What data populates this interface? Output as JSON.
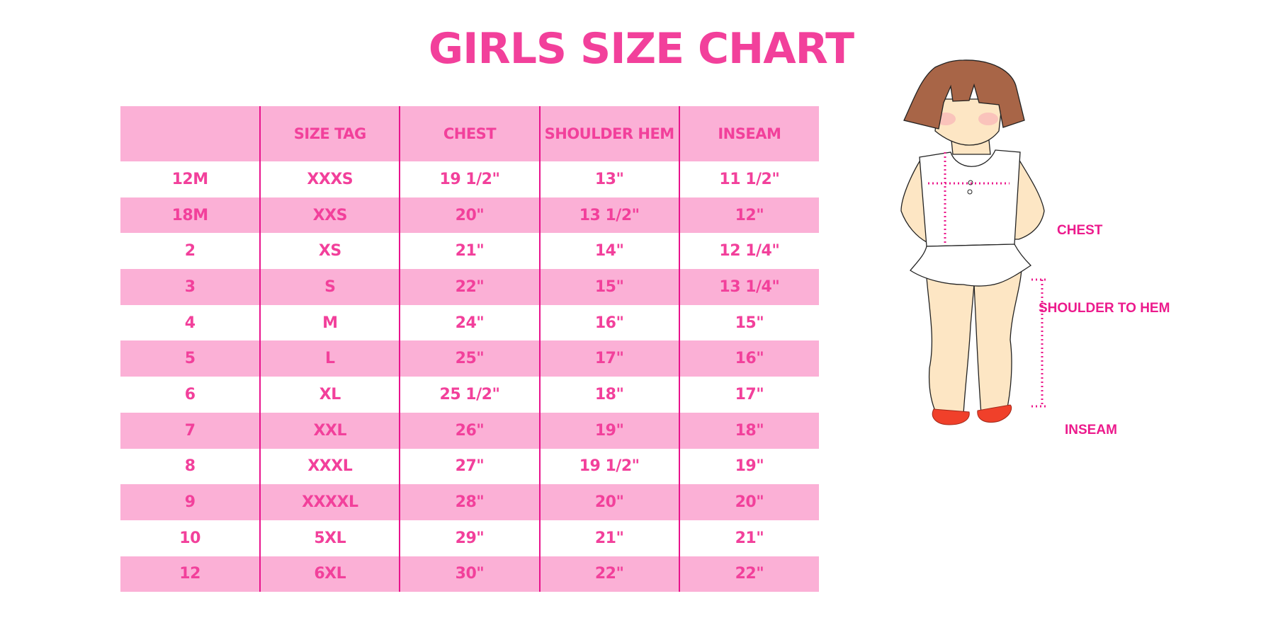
{
  "title": "GIRLS SIZE CHART",
  "colors": {
    "accent": "#f2409b",
    "row_pink": "#fbb0d6",
    "divider": "#e8138c",
    "hair": "#a86547",
    "skin": "#fde6c4",
    "shoes": "#f0402a"
  },
  "table": {
    "headers": [
      "",
      "SIZE TAG",
      "CHEST",
      "SHOULDER HEM",
      "INSEAM"
    ],
    "rows": [
      [
        "12M",
        "XXXS",
        "19 1/2\"",
        "13\"",
        "11 1/2\""
      ],
      [
        "18M",
        "XXS",
        "20\"",
        "13 1/2\"",
        "12\""
      ],
      [
        "2",
        "XS",
        "21\"",
        "14\"",
        "12 1/4\""
      ],
      [
        "3",
        "S",
        "22\"",
        "15\"",
        "13 1/4\""
      ],
      [
        "4",
        "M",
        "24\"",
        "16\"",
        "15\""
      ],
      [
        "5",
        "L",
        "25\"",
        "17\"",
        "16\""
      ],
      [
        "6",
        "XL",
        "25 1/2\"",
        "18\"",
        "17\""
      ],
      [
        "7",
        "XXL",
        "26\"",
        "19\"",
        "18\""
      ],
      [
        "8",
        "XXXL",
        "27\"",
        "19 1/2\"",
        "19\""
      ],
      [
        "9",
        "XXXXL",
        "28\"",
        "20\"",
        "20\""
      ],
      [
        "10",
        "5XL",
        "29\"",
        "21\"",
        "21\""
      ],
      [
        "12",
        "6XL",
        "30\"",
        "22\"",
        "22\""
      ]
    ]
  },
  "diagram": {
    "labels": {
      "chest": "CHEST",
      "shoulder_to_hem": "SHOULDER TO HEM",
      "inseam": "INSEAM"
    }
  }
}
